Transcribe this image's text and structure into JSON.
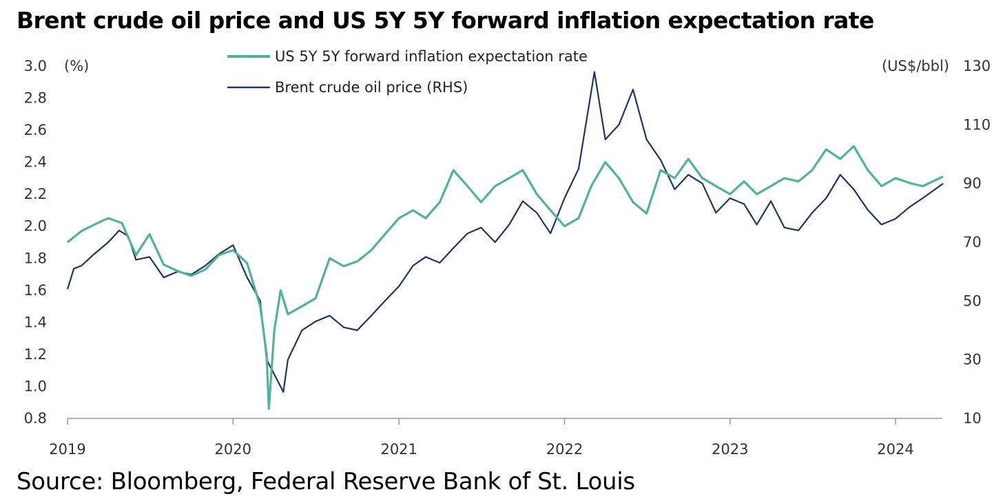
{
  "title": "Brent crude oil price and US 5Y 5Y forward inflation expectation rate",
  "source": "Source: Bloomberg, Federal Reserve Bank of St. Louis",
  "colors": {
    "inflation": "#4fb39a",
    "brent": "#1d3566",
    "axis": "#999999",
    "text": "#333333"
  },
  "chart_data": {
    "type": "line",
    "left_axis_unit": "(%)",
    "right_axis_unit": "(US$/bbl)",
    "ylim": [
      0.8,
      3.0
    ],
    "y2lim": [
      10,
      130
    ],
    "y_ticks": [
      "0.8",
      "1.0",
      "1.2",
      "1.4",
      "1.6",
      "1.8",
      "2.0",
      "2.2",
      "2.4",
      "2.6",
      "2.8",
      "3.0"
    ],
    "y2_ticks": [
      "10",
      "30",
      "50",
      "70",
      "90",
      "110",
      "130"
    ],
    "x_ticks": [
      "2019",
      "2020",
      "2021",
      "2022",
      "2023",
      "2024"
    ],
    "xlim": [
      "2019-01-01",
      "2024-04-30"
    ],
    "grid": false,
    "legend_position": "top-center",
    "series": [
      {
        "name": "US 5Y 5Y forward inflation expectation rate",
        "axis": "left",
        "points": [
          [
            "2019-01-01",
            1.9
          ],
          [
            "2019-02-01",
            1.97
          ],
          [
            "2019-03-01",
            2.01
          ],
          [
            "2019-04-01",
            2.05
          ],
          [
            "2019-05-01",
            2.02
          ],
          [
            "2019-06-01",
            1.82
          ],
          [
            "2019-07-01",
            1.95
          ],
          [
            "2019-08-01",
            1.76
          ],
          [
            "2019-09-01",
            1.72
          ],
          [
            "2019-10-01",
            1.69
          ],
          [
            "2019-11-01",
            1.73
          ],
          [
            "2019-12-01",
            1.82
          ],
          [
            "2020-01-01",
            1.85
          ],
          [
            "2020-02-01",
            1.77
          ],
          [
            "2020-03-01",
            1.5
          ],
          [
            "2020-03-15",
            1.2
          ],
          [
            "2020-03-20",
            0.86
          ],
          [
            "2020-04-01",
            1.35
          ],
          [
            "2020-04-15",
            1.6
          ],
          [
            "2020-05-01",
            1.45
          ],
          [
            "2020-06-01",
            1.5
          ],
          [
            "2020-07-01",
            1.55
          ],
          [
            "2020-08-01",
            1.8
          ],
          [
            "2020-09-01",
            1.75
          ],
          [
            "2020-10-01",
            1.78
          ],
          [
            "2020-11-01",
            1.85
          ],
          [
            "2020-12-01",
            1.95
          ],
          [
            "2021-01-01",
            2.05
          ],
          [
            "2021-02-01",
            2.1
          ],
          [
            "2021-03-01",
            2.05
          ],
          [
            "2021-04-01",
            2.15
          ],
          [
            "2021-05-01",
            2.35
          ],
          [
            "2021-06-01",
            2.25
          ],
          [
            "2021-07-01",
            2.15
          ],
          [
            "2021-08-01",
            2.25
          ],
          [
            "2021-09-01",
            2.3
          ],
          [
            "2021-10-01",
            2.35
          ],
          [
            "2021-11-01",
            2.2
          ],
          [
            "2021-12-01",
            2.1
          ],
          [
            "2022-01-01",
            2.0
          ],
          [
            "2022-02-01",
            2.05
          ],
          [
            "2022-03-01",
            2.25
          ],
          [
            "2022-04-01",
            2.4
          ],
          [
            "2022-05-01",
            2.3
          ],
          [
            "2022-06-01",
            2.15
          ],
          [
            "2022-07-01",
            2.08
          ],
          [
            "2022-08-01",
            2.35
          ],
          [
            "2022-09-01",
            2.3
          ],
          [
            "2022-10-01",
            2.42
          ],
          [
            "2022-11-01",
            2.3
          ],
          [
            "2022-12-01",
            2.25
          ],
          [
            "2023-01-01",
            2.2
          ],
          [
            "2023-02-01",
            2.28
          ],
          [
            "2023-03-01",
            2.2
          ],
          [
            "2023-04-01",
            2.25
          ],
          [
            "2023-05-01",
            2.3
          ],
          [
            "2023-06-01",
            2.28
          ],
          [
            "2023-07-01",
            2.35
          ],
          [
            "2023-08-01",
            2.48
          ],
          [
            "2023-09-01",
            2.42
          ],
          [
            "2023-10-01",
            2.5
          ],
          [
            "2023-11-01",
            2.35
          ],
          [
            "2023-12-01",
            2.25
          ],
          [
            "2024-01-01",
            2.3
          ],
          [
            "2024-02-01",
            2.27
          ],
          [
            "2024-03-01",
            2.25
          ],
          [
            "2024-04-15",
            2.31
          ]
        ]
      },
      {
        "name": "Brent crude oil price (RHS)",
        "axis": "right",
        "points": [
          [
            "2019-01-01",
            54
          ],
          [
            "2019-01-15",
            61
          ],
          [
            "2019-02-01",
            62
          ],
          [
            "2019-03-01",
            66
          ],
          [
            "2019-04-01",
            70
          ],
          [
            "2019-04-25",
            74
          ],
          [
            "2019-05-15",
            72
          ],
          [
            "2019-06-01",
            64
          ],
          [
            "2019-07-01",
            65
          ],
          [
            "2019-08-01",
            58
          ],
          [
            "2019-09-01",
            60
          ],
          [
            "2019-10-01",
            59
          ],
          [
            "2019-11-01",
            62
          ],
          [
            "2019-12-01",
            66
          ],
          [
            "2020-01-01",
            69
          ],
          [
            "2020-02-01",
            58
          ],
          [
            "2020-03-01",
            50
          ],
          [
            "2020-03-15",
            30
          ],
          [
            "2020-04-01",
            25
          ],
          [
            "2020-04-21",
            19
          ],
          [
            "2020-05-01",
            30
          ],
          [
            "2020-06-01",
            40
          ],
          [
            "2020-07-01",
            43
          ],
          [
            "2020-08-01",
            45
          ],
          [
            "2020-09-01",
            41
          ],
          [
            "2020-10-01",
            40
          ],
          [
            "2020-11-01",
            45
          ],
          [
            "2020-12-01",
            50
          ],
          [
            "2021-01-01",
            55
          ],
          [
            "2021-02-01",
            62
          ],
          [
            "2021-03-01",
            65
          ],
          [
            "2021-04-01",
            63
          ],
          [
            "2021-05-01",
            68
          ],
          [
            "2021-06-01",
            73
          ],
          [
            "2021-07-01",
            75
          ],
          [
            "2021-08-01",
            70
          ],
          [
            "2021-09-01",
            76
          ],
          [
            "2021-10-01",
            84
          ],
          [
            "2021-11-01",
            80
          ],
          [
            "2021-12-01",
            73
          ],
          [
            "2022-01-01",
            85
          ],
          [
            "2022-02-01",
            95
          ],
          [
            "2022-03-08",
            128
          ],
          [
            "2022-04-01",
            105
          ],
          [
            "2022-05-01",
            110
          ],
          [
            "2022-06-01",
            122
          ],
          [
            "2022-07-01",
            105
          ],
          [
            "2022-08-01",
            98
          ],
          [
            "2022-09-01",
            88
          ],
          [
            "2022-10-01",
            93
          ],
          [
            "2022-11-01",
            90
          ],
          [
            "2022-12-01",
            80
          ],
          [
            "2023-01-01",
            85
          ],
          [
            "2023-02-01",
            83
          ],
          [
            "2023-03-01",
            76
          ],
          [
            "2023-04-01",
            84
          ],
          [
            "2023-05-01",
            75
          ],
          [
            "2023-06-01",
            74
          ],
          [
            "2023-07-01",
            80
          ],
          [
            "2023-08-01",
            85
          ],
          [
            "2023-09-01",
            93
          ],
          [
            "2023-10-01",
            88
          ],
          [
            "2023-11-01",
            81
          ],
          [
            "2023-12-01",
            76
          ],
          [
            "2024-01-01",
            78
          ],
          [
            "2024-02-01",
            82
          ],
          [
            "2024-03-01",
            85
          ],
          [
            "2024-04-15",
            90
          ]
        ]
      }
    ]
  }
}
